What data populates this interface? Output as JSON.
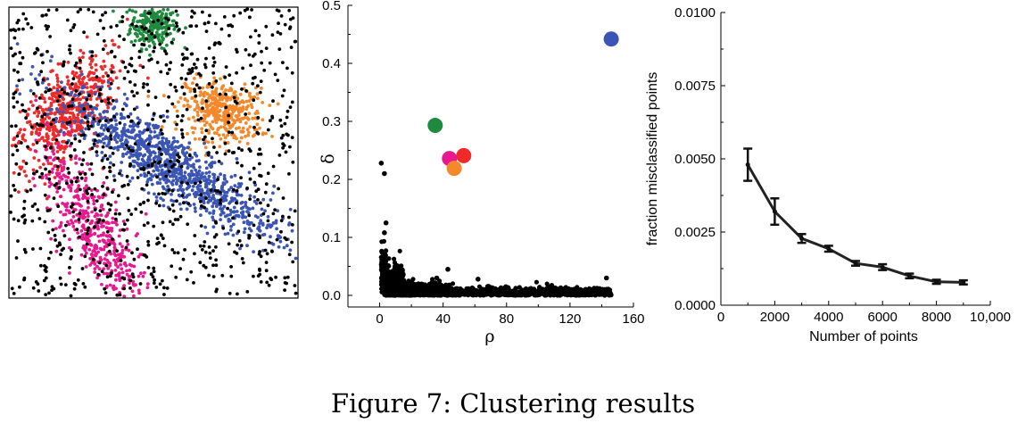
{
  "caption": "Figure 7: Clustering results",
  "colors": {
    "green": "#1f8a3e",
    "red": "#ee2a2a",
    "orange": "#f5882a",
    "blue": "#3a55b4",
    "magenta": "#e8198f",
    "black": "#000000"
  },
  "chart_data": [
    {
      "type": "scatter",
      "title": "",
      "xlabel": "",
      "ylabel": "",
      "axes": false,
      "xlim": [
        0,
        1
      ],
      "ylim": [
        0,
        1
      ],
      "series": [
        {
          "color": "green",
          "cx": 0.5,
          "cy": 0.94,
          "sx": 0.04,
          "sy": 0.04,
          "rot": 0,
          "n": 260
        },
        {
          "color": "red",
          "cx": 0.2,
          "cy": 0.64,
          "sx": 0.12,
          "sy": 0.055,
          "rot": 50,
          "n": 520
        },
        {
          "color": "orange",
          "cx": 0.74,
          "cy": 0.64,
          "sx": 0.07,
          "sy": 0.05,
          "rot": -10,
          "n": 380
        },
        {
          "color": "blue",
          "cx": 0.55,
          "cy": 0.46,
          "sx": 0.22,
          "sy": 0.05,
          "rot": -33,
          "n": 1000
        },
        {
          "color": "magenta",
          "cx": 0.29,
          "cy": 0.25,
          "sx": 0.16,
          "sy": 0.05,
          "rot": -60,
          "n": 480
        },
        {
          "color": "black",
          "uniform": true,
          "n": 900
        }
      ]
    },
    {
      "type": "scatter",
      "xlabel": "ρ",
      "ylabel": "δ",
      "xlim": [
        -20,
        160
      ],
      "ylim": [
        -0.02,
        0.5
      ],
      "xticks": [
        0,
        40,
        80,
        120,
        160
      ],
      "xtick_labels": [
        "0",
        "40",
        "80",
        "120",
        "160"
      ],
      "yticks": [
        0.0,
        0.1,
        0.2,
        0.3,
        0.4,
        0.5
      ],
      "ytick_labels": [
        "0.0",
        "0.1",
        "0.2",
        "0.3",
        "0.4",
        "0.5"
      ],
      "cluster_centers": [
        {
          "color": "blue",
          "x": 146,
          "y": 0.442
        },
        {
          "color": "green",
          "x": 35,
          "y": 0.293
        },
        {
          "color": "red",
          "x": 53,
          "y": 0.241
        },
        {
          "color": "magenta",
          "x": 44,
          "y": 0.236
        },
        {
          "color": "orange",
          "x": 47,
          "y": 0.219
        }
      ],
      "outliers": [
        {
          "x": 1,
          "y": 0.228
        },
        {
          "x": 3,
          "y": 0.21
        },
        {
          "x": 4,
          "y": 0.125
        },
        {
          "x": 3,
          "y": 0.108
        },
        {
          "x": 43,
          "y": 0.045
        },
        {
          "x": 36,
          "y": 0.03
        },
        {
          "x": 143,
          "y": 0.03
        },
        {
          "x": 62,
          "y": 0.028
        }
      ],
      "bulk": {
        "x_range": [
          1,
          146
        ],
        "y_range": [
          0.0,
          0.03
        ],
        "n": 2200
      }
    },
    {
      "type": "line",
      "xlabel": "Number of points",
      "ylabel": "fraction misclassified points",
      "xlim": [
        0,
        10000
      ],
      "ylim": [
        0,
        0.01
      ],
      "xticks": [
        0,
        2000,
        4000,
        6000,
        8000,
        10000
      ],
      "xtick_labels": [
        "0",
        "2000",
        "4000",
        "6000",
        "8000",
        "10,000"
      ],
      "yticks": [
        0,
        0.0025,
        0.005,
        0.0075,
        0.01
      ],
      "ytick_labels": [
        "0.0000",
        "0.0025",
        "0.0050",
        "0.0075",
        "0.0100"
      ],
      "x": [
        1000,
        2000,
        3000,
        4000,
        5000,
        6000,
        7000,
        8000,
        9000
      ],
      "y": [
        0.0048,
        0.0032,
        0.00228,
        0.00193,
        0.00143,
        0.0013,
        0.001,
        0.0008,
        0.00078
      ],
      "err": [
        0.00055,
        0.00045,
        0.00015,
        0.0001,
        8e-05,
        0.0001,
        8e-05,
        7e-05,
        7e-05
      ]
    }
  ]
}
